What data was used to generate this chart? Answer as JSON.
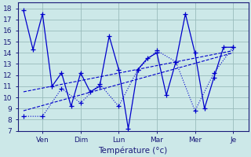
{
  "xlabel": "Température (°c)",
  "bg_color": "#cce8e8",
  "grid_color": "#99bbbb",
  "line_color": "#0000cc",
  "yticks": [
    7,
    8,
    9,
    10,
    11,
    12,
    13,
    14,
    15,
    16,
    17,
    18
  ],
  "ylim": [
    7,
    18.5
  ],
  "xlim": [
    -0.3,
    11.8
  ],
  "day_labels": [
    "Ven",
    "Dim",
    "Lun",
    "Mar",
    "Mer",
    "Je"
  ],
  "day_positions": [
    1.0,
    3.0,
    5.0,
    7.0,
    9.0,
    11.0
  ],
  "series1_x": [
    0,
    0.5,
    1,
    1.5,
    2,
    2.5,
    3,
    3.5,
    4,
    4.5,
    5,
    5.5,
    6,
    6.5,
    7,
    7.5,
    8,
    8.5,
    9,
    9.5,
    10,
    10.5,
    11
  ],
  "series1_y": [
    17.8,
    14.3,
    17.5,
    11.0,
    12.2,
    9.2,
    12.2,
    10.5,
    11.0,
    15.5,
    12.5,
    7.2,
    12.5,
    13.5,
    14.0,
    10.2,
    13.2,
    17.5,
    14.0,
    9.0,
    11.8,
    14.5,
    14.5
  ],
  "series2_x": [
    0,
    1,
    2,
    3,
    4,
    5,
    6,
    7,
    8,
    9,
    10,
    11
  ],
  "series2_y": [
    8.3,
    8.3,
    10.8,
    9.5,
    11.2,
    9.2,
    12.5,
    14.2,
    13.2,
    8.8,
    12.2,
    14.5
  ],
  "trend1_x": [
    0,
    11
  ],
  "trend1_y": [
    8.8,
    14.0
  ],
  "trend2_x": [
    0,
    11
  ],
  "trend2_y": [
    10.5,
    14.2
  ]
}
